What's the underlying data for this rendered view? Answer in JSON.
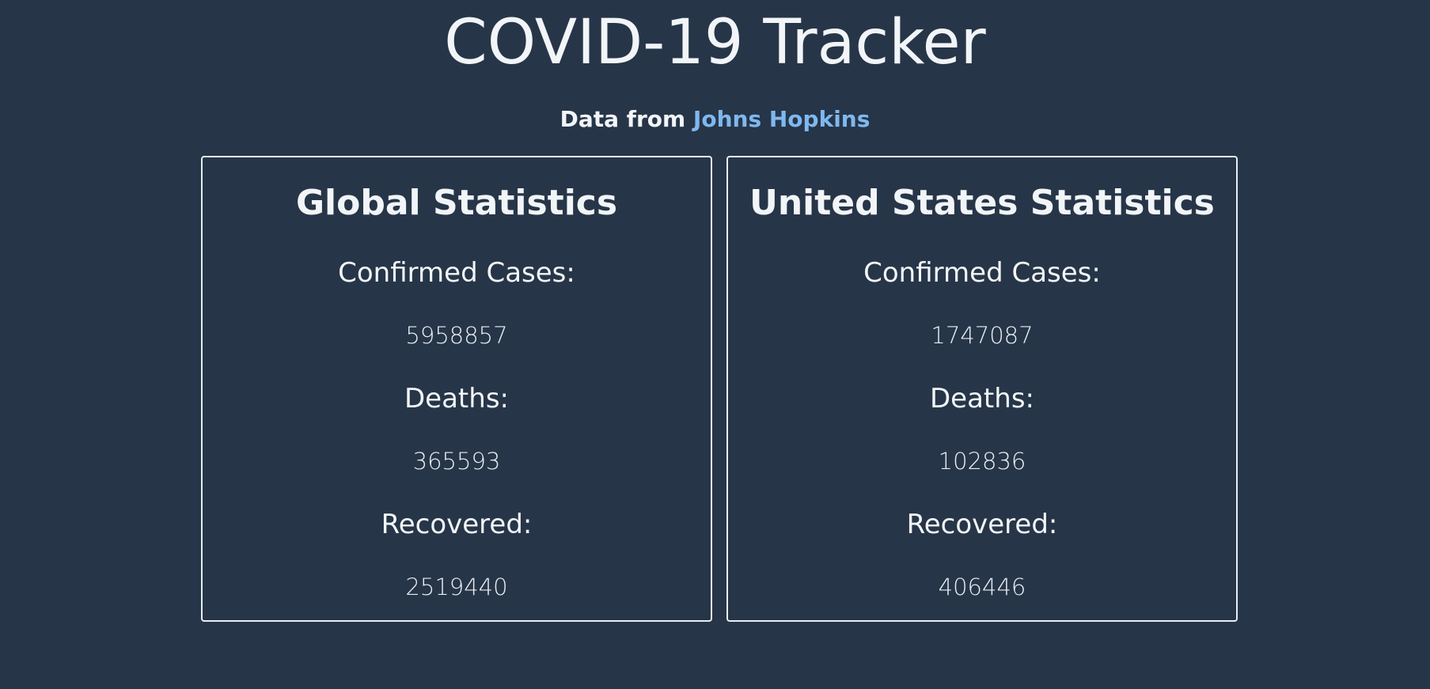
{
  "header": {
    "title": "COVID-19 Tracker",
    "attribution_prefix": "Data from ",
    "attribution_link": "Johns Hopkins"
  },
  "global": {
    "title": "Global Statistics",
    "confirmed_label": "Confirmed Cases:",
    "confirmed_value": "5958857",
    "deaths_label": "Deaths:",
    "deaths_value": "365593",
    "recovered_label": "Recovered:",
    "recovered_value": "2519440"
  },
  "us": {
    "title": "United States Statistics",
    "confirmed_label": "Confirmed Cases:",
    "confirmed_value": "1747087",
    "deaths_label": "Deaths:",
    "deaths_value": "102836",
    "recovered_label": "Recovered:",
    "recovered_value": "406446"
  },
  "colors": {
    "background": "#273548",
    "text": "#f2f5f8",
    "link": "#7fb8f0",
    "card_border": "#e8edf2"
  }
}
